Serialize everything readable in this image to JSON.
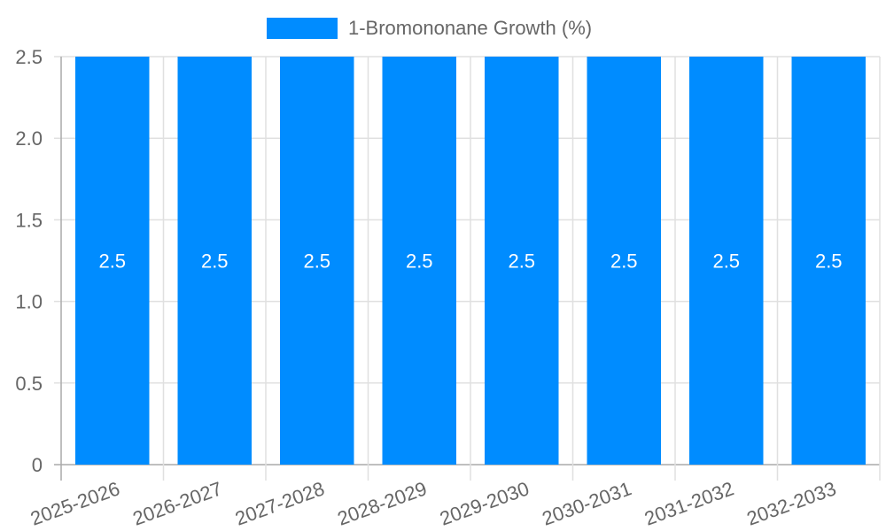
{
  "chart_data": {
    "type": "bar",
    "title": "",
    "xlabel": "",
    "ylabel": "",
    "legend": {
      "position": "top",
      "entries": [
        "1-Bromononane Growth (%)"
      ]
    },
    "categories": [
      "2025-2026",
      "2026-2027",
      "2027-2028",
      "2028-2029",
      "2029-2030",
      "2030-2031",
      "2031-2032",
      "2032-2033"
    ],
    "series": [
      {
        "name": "1-Bromononane Growth (%)",
        "color": "#008cff",
        "values": [
          2.5,
          2.5,
          2.5,
          2.5,
          2.5,
          2.5,
          2.5,
          2.5
        ]
      }
    ],
    "ylim": [
      0,
      2.5
    ],
    "yticks": [
      "0",
      "0.5",
      "1.0",
      "1.5",
      "2.0",
      "2.5"
    ],
    "grid": true,
    "data_labels": true,
    "x_tick_rotation": -20
  },
  "legend": {
    "label": "1-Bromononane Growth (%)",
    "color": "#008cff"
  }
}
